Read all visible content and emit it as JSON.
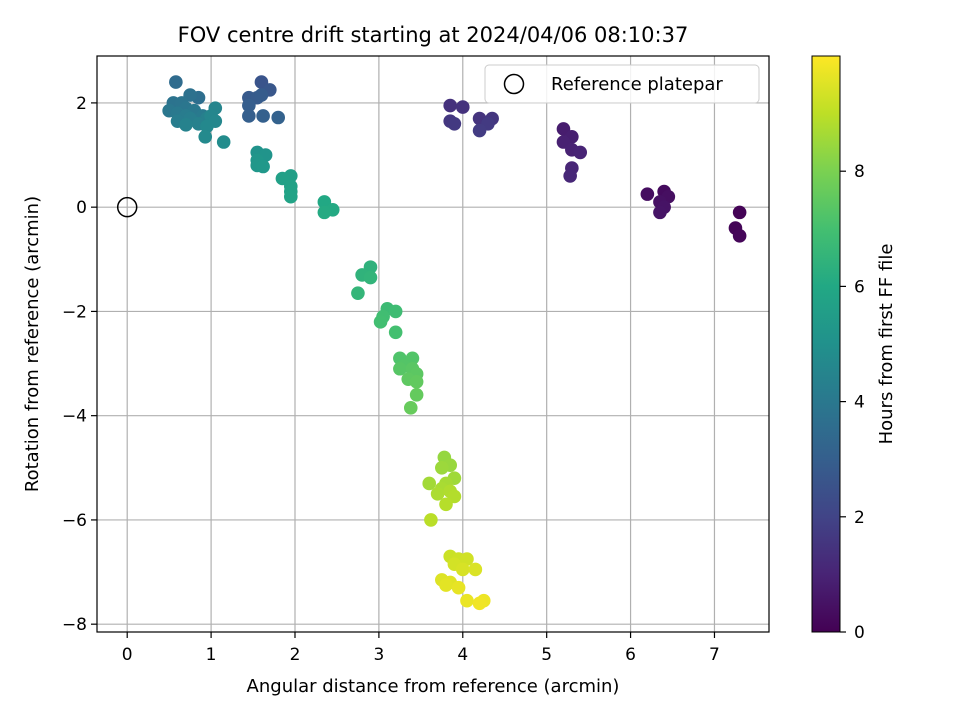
{
  "chart_data": {
    "type": "scatter",
    "title": "FOV centre drift starting at 2024/04/06 08:10:37",
    "xlabel": "Angular distance from reference (arcmin)",
    "ylabel": "Rotation from reference (arcmin)",
    "xlim": [
      -0.36,
      7.65
    ],
    "ylim": [
      -8.15,
      2.9
    ],
    "xticks": [
      "0",
      "1",
      "2",
      "3",
      "4",
      "5",
      "6",
      "7"
    ],
    "yticks": [
      "−8",
      "−6",
      "−4",
      "−2",
      "0",
      "2"
    ],
    "xtick_values": [
      0,
      1,
      2,
      3,
      4,
      5,
      6,
      7
    ],
    "ytick_values": [
      -8,
      -6,
      -4,
      -2,
      0,
      2
    ],
    "grid": true,
    "legend": {
      "placement": "upper right",
      "entries": [
        "Reference platepar"
      ]
    },
    "reference_point": {
      "x": 0,
      "y": 0
    },
    "colorbar": {
      "label": "Hours from first FF file",
      "range": [
        0,
        10
      ],
      "ticks": [
        "0",
        "2",
        "4",
        "6",
        "8"
      ],
      "tick_values": [
        0,
        2,
        4,
        6,
        8
      ],
      "colormap": "viridis"
    },
    "points": [
      {
        "x": 7.3,
        "y": -0.1,
        "h": 0.05
      },
      {
        "x": 7.25,
        "y": -0.4,
        "h": 0.1
      },
      {
        "x": 7.3,
        "y": -0.55,
        "h": 0.15
      },
      {
        "x": 6.4,
        "y": 0.3,
        "h": 0.3
      },
      {
        "x": 6.2,
        "y": 0.25,
        "h": 0.35
      },
      {
        "x": 6.45,
        "y": 0.2,
        "h": 0.4
      },
      {
        "x": 6.35,
        "y": 0.1,
        "h": 0.45
      },
      {
        "x": 6.4,
        "y": 0.0,
        "h": 0.5
      },
      {
        "x": 6.35,
        "y": -0.1,
        "h": 0.55
      },
      {
        "x": 5.2,
        "y": 1.5,
        "h": 0.8
      },
      {
        "x": 5.3,
        "y": 1.35,
        "h": 0.85
      },
      {
        "x": 5.2,
        "y": 1.25,
        "h": 0.9
      },
      {
        "x": 5.3,
        "y": 1.1,
        "h": 0.95
      },
      {
        "x": 5.4,
        "y": 1.05,
        "h": 1.0
      },
      {
        "x": 5.3,
        "y": 0.75,
        "h": 1.05
      },
      {
        "x": 5.28,
        "y": 0.6,
        "h": 1.1
      },
      {
        "x": 3.85,
        "y": 1.95,
        "h": 1.4
      },
      {
        "x": 4.0,
        "y": 1.92,
        "h": 1.45
      },
      {
        "x": 4.2,
        "y": 1.7,
        "h": 1.5
      },
      {
        "x": 4.35,
        "y": 1.7,
        "h": 1.55
      },
      {
        "x": 3.85,
        "y": 1.65,
        "h": 1.6
      },
      {
        "x": 3.9,
        "y": 1.6,
        "h": 1.65
      },
      {
        "x": 4.3,
        "y": 1.6,
        "h": 1.7
      },
      {
        "x": 4.2,
        "y": 1.47,
        "h": 1.75
      },
      {
        "x": 1.6,
        "y": 2.4,
        "h": 2.6
      },
      {
        "x": 1.7,
        "y": 2.25,
        "h": 2.7
      },
      {
        "x": 1.45,
        "y": 2.1,
        "h": 2.8
      },
      {
        "x": 1.55,
        "y": 2.1,
        "h": 2.85
      },
      {
        "x": 1.6,
        "y": 2.15,
        "h": 2.9
      },
      {
        "x": 1.45,
        "y": 1.95,
        "h": 2.95
      },
      {
        "x": 1.45,
        "y": 1.75,
        "h": 3.0
      },
      {
        "x": 1.62,
        "y": 1.75,
        "h": 3.05
      },
      {
        "x": 1.8,
        "y": 1.72,
        "h": 3.1
      },
      {
        "x": 0.58,
        "y": 2.4,
        "h": 3.5
      },
      {
        "x": 0.85,
        "y": 2.1,
        "h": 3.6
      },
      {
        "x": 0.75,
        "y": 2.15,
        "h": 3.7
      },
      {
        "x": 0.55,
        "y": 2.0,
        "h": 3.8
      },
      {
        "x": 0.65,
        "y": 2.0,
        "h": 3.85
      },
      {
        "x": 0.7,
        "y": 1.9,
        "h": 3.9
      },
      {
        "x": 0.5,
        "y": 1.85,
        "h": 3.95
      },
      {
        "x": 0.8,
        "y": 1.85,
        "h": 4.0
      },
      {
        "x": 0.6,
        "y": 1.8,
        "h": 4.05
      },
      {
        "x": 0.9,
        "y": 1.75,
        "h": 4.1
      },
      {
        "x": 0.7,
        "y": 1.75,
        "h": 4.15
      },
      {
        "x": 0.6,
        "y": 1.65,
        "h": 4.2
      },
      {
        "x": 0.75,
        "y": 1.7,
        "h": 4.25
      },
      {
        "x": 0.95,
        "y": 1.7,
        "h": 4.3
      },
      {
        "x": 0.85,
        "y": 1.6,
        "h": 4.35
      },
      {
        "x": 0.7,
        "y": 1.58,
        "h": 4.4
      },
      {
        "x": 1.05,
        "y": 1.9,
        "h": 4.5
      },
      {
        "x": 1.0,
        "y": 1.75,
        "h": 4.55
      },
      {
        "x": 1.05,
        "y": 1.65,
        "h": 4.6
      },
      {
        "x": 0.95,
        "y": 1.55,
        "h": 4.65
      },
      {
        "x": 0.93,
        "y": 1.35,
        "h": 4.7
      },
      {
        "x": 1.15,
        "y": 1.25,
        "h": 4.8
      },
      {
        "x": 1.55,
        "y": 1.05,
        "h": 5.1
      },
      {
        "x": 1.65,
        "y": 1.0,
        "h": 5.15
      },
      {
        "x": 1.55,
        "y": 0.9,
        "h": 5.2
      },
      {
        "x": 1.55,
        "y": 0.8,
        "h": 5.25
      },
      {
        "x": 1.62,
        "y": 0.78,
        "h": 5.3
      },
      {
        "x": 1.95,
        "y": 0.6,
        "h": 5.6
      },
      {
        "x": 1.85,
        "y": 0.55,
        "h": 5.65
      },
      {
        "x": 1.95,
        "y": 0.4,
        "h": 5.7
      },
      {
        "x": 1.95,
        "y": 0.3,
        "h": 5.75
      },
      {
        "x": 1.95,
        "y": 0.2,
        "h": 5.8
      },
      {
        "x": 2.35,
        "y": 0.1,
        "h": 6.0
      },
      {
        "x": 2.45,
        "y": -0.05,
        "h": 6.05
      },
      {
        "x": 2.35,
        "y": -0.1,
        "h": 6.1
      },
      {
        "x": 2.9,
        "y": -1.15,
        "h": 6.4
      },
      {
        "x": 2.8,
        "y": -1.3,
        "h": 6.45
      },
      {
        "x": 2.9,
        "y": -1.35,
        "h": 6.5
      },
      {
        "x": 2.75,
        "y": -1.65,
        "h": 6.55
      },
      {
        "x": 3.1,
        "y": -1.95,
        "h": 6.8
      },
      {
        "x": 3.2,
        "y": -2.0,
        "h": 6.85
      },
      {
        "x": 3.05,
        "y": -2.1,
        "h": 6.9
      },
      {
        "x": 3.02,
        "y": -2.2,
        "h": 6.95
      },
      {
        "x": 3.2,
        "y": -2.4,
        "h": 7.0
      },
      {
        "x": 3.25,
        "y": -2.9,
        "h": 7.2
      },
      {
        "x": 3.4,
        "y": -2.9,
        "h": 7.25
      },
      {
        "x": 3.3,
        "y": -3.05,
        "h": 7.3
      },
      {
        "x": 3.25,
        "y": -3.1,
        "h": 7.35
      },
      {
        "x": 3.4,
        "y": -3.1,
        "h": 7.4
      },
      {
        "x": 3.45,
        "y": -3.2,
        "h": 7.45
      },
      {
        "x": 3.35,
        "y": -3.3,
        "h": 7.5
      },
      {
        "x": 3.45,
        "y": -3.35,
        "h": 7.55
      },
      {
        "x": 3.45,
        "y": -3.6,
        "h": 7.6
      },
      {
        "x": 3.38,
        "y": -3.85,
        "h": 7.65
      },
      {
        "x": 3.78,
        "y": -4.8,
        "h": 8.4
      },
      {
        "x": 3.85,
        "y": -4.95,
        "h": 8.45
      },
      {
        "x": 3.75,
        "y": -5.0,
        "h": 8.5
      },
      {
        "x": 3.9,
        "y": -5.2,
        "h": 8.55
      },
      {
        "x": 3.6,
        "y": -5.3,
        "h": 8.6
      },
      {
        "x": 3.8,
        "y": -5.3,
        "h": 8.65
      },
      {
        "x": 3.75,
        "y": -5.4,
        "h": 8.7
      },
      {
        "x": 3.7,
        "y": -5.5,
        "h": 8.75
      },
      {
        "x": 3.85,
        "y": -5.45,
        "h": 8.8
      },
      {
        "x": 3.9,
        "y": -5.55,
        "h": 8.85
      },
      {
        "x": 3.8,
        "y": -5.7,
        "h": 8.9
      },
      {
        "x": 3.62,
        "y": -6.0,
        "h": 8.95
      },
      {
        "x": 3.85,
        "y": -6.7,
        "h": 9.2
      },
      {
        "x": 3.95,
        "y": -6.75,
        "h": 9.25
      },
      {
        "x": 4.05,
        "y": -6.75,
        "h": 9.3
      },
      {
        "x": 3.9,
        "y": -6.85,
        "h": 9.35
      },
      {
        "x": 4.0,
        "y": -6.95,
        "h": 9.4
      },
      {
        "x": 4.15,
        "y": -6.95,
        "h": 9.45
      },
      {
        "x": 3.75,
        "y": -7.15,
        "h": 9.5
      },
      {
        "x": 3.85,
        "y": -7.2,
        "h": 9.55
      },
      {
        "x": 3.8,
        "y": -7.25,
        "h": 9.6
      },
      {
        "x": 3.95,
        "y": -7.3,
        "h": 9.65
      },
      {
        "x": 4.05,
        "y": -7.55,
        "h": 9.7
      },
      {
        "x": 4.25,
        "y": -7.55,
        "h": 9.75
      },
      {
        "x": 4.2,
        "y": -7.6,
        "h": 9.8
      }
    ]
  }
}
